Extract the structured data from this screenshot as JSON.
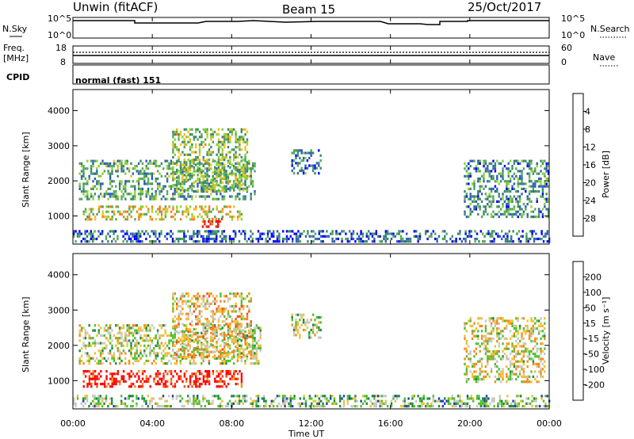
{
  "header": {
    "station": "Unwin (fitACF)",
    "beam": "Beam 15",
    "date": "25/Oct/2017"
  },
  "panels": {
    "nsky": {
      "label": "N.Sky",
      "tick_top": "10^5",
      "tick_bottom": "10^0",
      "right_label": "N.Search",
      "right_tick_top": "10^5",
      "right_tick_bottom": "10^0"
    },
    "freq": {
      "label_line1": "Freq.",
      "label_line2": "[MHz]",
      "tick_top": "18",
      "tick_bottom": "8",
      "right_label": "Nave",
      "right_tick_top": "60",
      "right_tick_bottom": "0"
    },
    "cpid": {
      "label": "CPID",
      "mode": "normal (fast) 151"
    }
  },
  "colors": {
    "power": [
      "#0000ff",
      "#2f5fb8",
      "#3a8a6a",
      "#56a858",
      "#8ccf3a",
      "#f0c020",
      "#f08020",
      "#e03010",
      "#ff0000"
    ],
    "velocity": [
      "#ff0000",
      "#f05018",
      "#f08c18",
      "#f0c030",
      "#c8c8c0",
      "#50c030",
      "#1e8a40",
      "#2040b0",
      "#1010d0"
    ]
  },
  "chart_data": [
    {
      "type": "heatmap",
      "name": "power-panel",
      "ylabel": "Slant Range [km]",
      "yticks": [
        "1000",
        "2000",
        "3000",
        "4000"
      ],
      "ylim": [
        200,
        4600
      ],
      "xlim_hours": [
        0,
        24
      ],
      "colorbar": {
        "label": "Power [dB]",
        "ticks": [
          "4",
          "8",
          "12",
          "16",
          "20",
          "24",
          "28"
        ],
        "range": [
          0,
          32
        ]
      },
      "echo_bands": [
        {
          "t0": 0.3,
          "t1": 9.2,
          "r0": 1500,
          "r1": 2600,
          "level": 0.35
        },
        {
          "t0": 0.5,
          "t1": 8.5,
          "r0": 900,
          "r1": 1300,
          "level": 0.55
        },
        {
          "t0": 5.0,
          "t1": 8.8,
          "r0": 1700,
          "r1": 3500,
          "level": 0.45
        },
        {
          "t0": 6.5,
          "t1": 7.5,
          "r0": 700,
          "r1": 950,
          "level": 0.9
        },
        {
          "t0": 11.0,
          "t1": 12.5,
          "r0": 2200,
          "r1": 2900,
          "level": 0.25
        },
        {
          "t0": 19.7,
          "t1": 24.0,
          "r0": 1000,
          "r1": 2600,
          "level": 0.3
        },
        {
          "t0": 0.0,
          "t1": 24.0,
          "r0": 250,
          "r1": 600,
          "level": 0.2
        }
      ]
    },
    {
      "type": "heatmap",
      "name": "velocity-panel",
      "ylabel": "Slant Range [km]",
      "yticks": [
        "1000",
        "2000",
        "3000",
        "4000"
      ],
      "ylim": [
        200,
        4600
      ],
      "xlim_hours": [
        0,
        24
      ],
      "xticks": [
        "00:00",
        "04:00",
        "08:00",
        "12:00",
        "16:00",
        "20:00",
        "00:00"
      ],
      "xlabel": "Time UT",
      "colorbar": {
        "label": "Velocity [m s⁻¹]",
        "ticks": [
          "200",
          "100",
          "50",
          "15",
          "-15",
          "-50",
          "-100",
          "-200"
        ]
      },
      "echo_bands": [
        {
          "t0": 0.3,
          "t1": 9.5,
          "r0": 1500,
          "r1": 2600,
          "level": 0.5
        },
        {
          "t0": 0.5,
          "t1": 8.5,
          "r0": 800,
          "r1": 1300,
          "level": 0.05
        },
        {
          "t0": 5.0,
          "t1": 9.0,
          "r0": 1700,
          "r1": 3500,
          "level": 0.4
        },
        {
          "t0": 11.0,
          "t1": 12.5,
          "r0": 2200,
          "r1": 2900,
          "level": 0.5
        },
        {
          "t0": 19.7,
          "t1": 23.8,
          "r0": 1000,
          "r1": 2800,
          "level": 0.45
        },
        {
          "t0": 0.0,
          "t1": 24.0,
          "r0": 250,
          "r1": 600,
          "level": 0.6
        }
      ]
    }
  ]
}
